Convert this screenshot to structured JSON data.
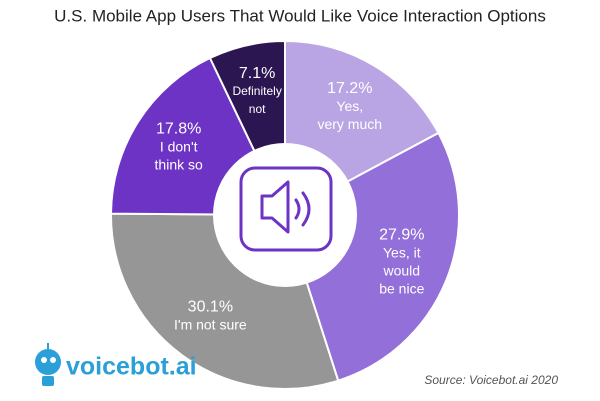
{
  "chart_data": {
    "type": "donut",
    "title": "U.S. Mobile App Users That Would Like Voice Interaction Options",
    "categories": [
      [
        "Yes,",
        "very much"
      ],
      [
        "Yes, it",
        "would",
        "be nice"
      ],
      [
        "I'm not sure"
      ],
      [
        "I don't",
        "think so"
      ],
      [
        "Definitely",
        "not"
      ]
    ],
    "values": [
      17.2,
      27.9,
      30.1,
      17.8,
      7.1
    ],
    "value_labels": [
      "17.2%",
      "27.9%",
      "30.1%",
      "17.8%",
      "7.1%"
    ],
    "colors": [
      "#b9a5e4",
      "#936fd9",
      "#969696",
      "#6c33c4",
      "#2b1652"
    ],
    "source": "Source: Voicebot.ai 2020",
    "logo": "voicebot.ai"
  }
}
